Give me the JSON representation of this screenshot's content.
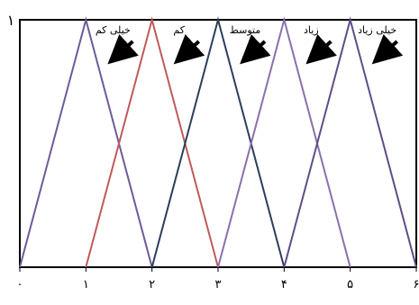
{
  "chart_data": {
    "type": "line",
    "title": "",
    "xlabel": "",
    "ylabel": "",
    "x_ticks": [
      {
        "value": 0,
        "label": "۰"
      },
      {
        "value": 1,
        "label": "۱"
      },
      {
        "value": 2,
        "label": "۲"
      },
      {
        "value": 3,
        "label": "۳"
      },
      {
        "value": 4,
        "label": "۴"
      },
      {
        "value": 5,
        "label": "۵"
      },
      {
        "value": 6,
        "label": "۶"
      }
    ],
    "y_ticks": [
      {
        "value": 1,
        "label": "۱"
      }
    ],
    "xlim": [
      0,
      6
    ],
    "ylim": [
      0,
      1
    ],
    "grid": false,
    "series": [
      {
        "name": "خیلی کم",
        "color": "#6f5a99",
        "x": [
          0,
          1,
          2
        ],
        "y": [
          0,
          1,
          0
        ]
      },
      {
        "name": "کم",
        "color": "#c05a5a",
        "x": [
          1,
          2,
          3
        ],
        "y": [
          0,
          1,
          0
        ]
      },
      {
        "name": "متوسط",
        "color": "#2c3e5a",
        "x": [
          2,
          3,
          4
        ],
        "y": [
          0,
          1,
          0
        ]
      },
      {
        "name": "زیاد",
        "color": "#8a70ad",
        "x": [
          3,
          4,
          5
        ],
        "y": [
          0,
          1,
          0
        ]
      },
      {
        "name": "خیلی زیاد",
        "color": "#5f4d88",
        "x": [
          4,
          5,
          6
        ],
        "y": [
          0,
          1,
          0
        ]
      }
    ]
  }
}
